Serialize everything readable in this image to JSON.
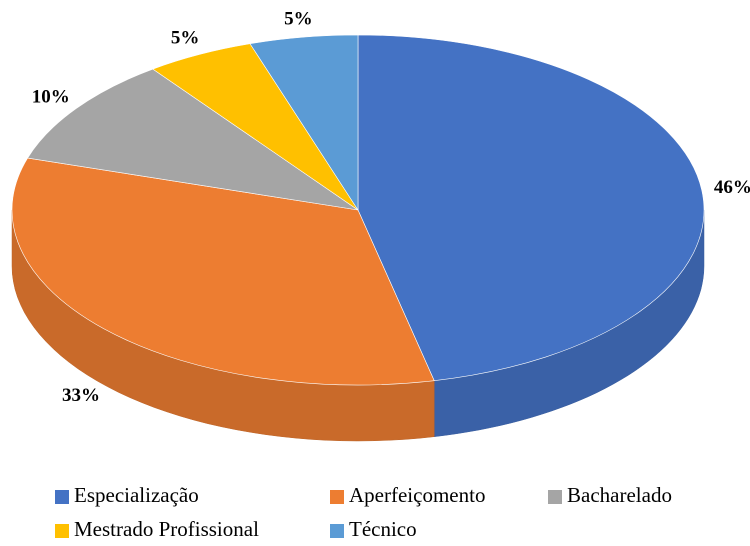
{
  "chart_data": {
    "type": "pie",
    "categories": [
      "Especialização",
      "Aperfeiçomento",
      "Bacharelado",
      "Mestrado Profissional",
      "Técnico"
    ],
    "values": [
      46,
      33,
      10,
      5,
      5
    ],
    "value_labels": [
      "46%",
      "33%",
      "10%",
      "5%",
      "5%"
    ],
    "colors": [
      "#4472c4",
      "#ed7d31",
      "#a5a5a5",
      "#ffc000",
      "#5b9bd5"
    ],
    "legend": "bottom"
  }
}
